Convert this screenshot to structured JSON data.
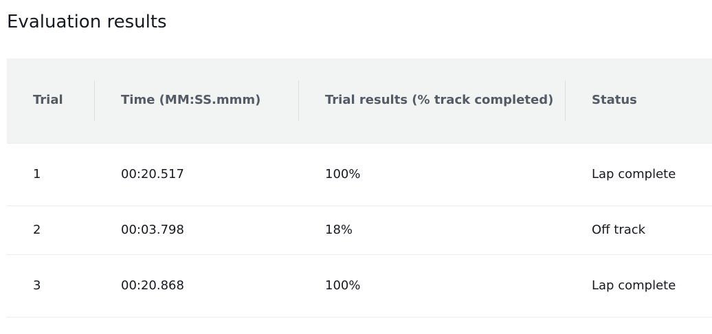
{
  "panel": {
    "title": "Evaluation results"
  },
  "table": {
    "columns": [
      "Trial",
      "Time (MM:SS.mmm)",
      "Trial results (% track completed)",
      "Status"
    ],
    "rows": [
      {
        "trial": "1",
        "time": "00:20.517",
        "result": "100%",
        "status": "Lap complete"
      },
      {
        "trial": "2",
        "time": "00:03.798",
        "result": "18%",
        "status": "Off track"
      },
      {
        "trial": "3",
        "time": "00:20.868",
        "result": "100%",
        "status": "Lap complete"
      }
    ]
  },
  "colors": {
    "header_background": "#f2f3f3",
    "header_text": "#545b64",
    "body_text": "#16191f",
    "row_divider": "#eaeded"
  }
}
